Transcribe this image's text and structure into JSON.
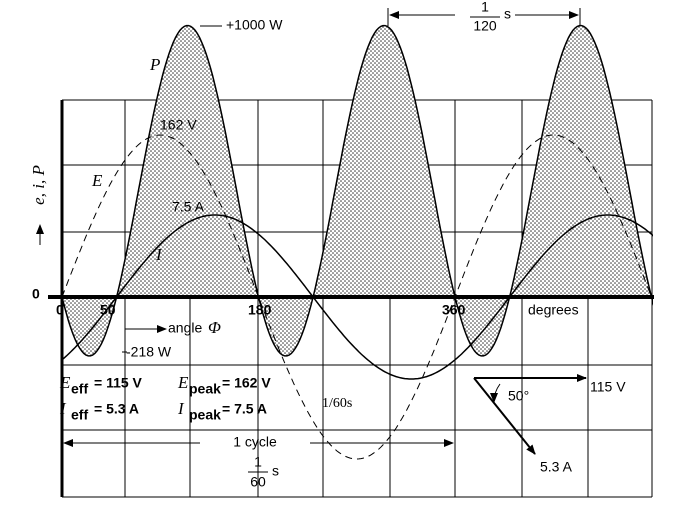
{
  "power": {
    "peak": "+1000 W",
    "label": "P",
    "trough": "-218 W"
  },
  "voltage": {
    "peak": "162 V",
    "label": "E"
  },
  "current": {
    "peak": "7.5 A",
    "label": "I"
  },
  "axis": {
    "y_label": "e, i, P",
    "origin": "0",
    "x_origin": "0",
    "x_50": "50",
    "x_180": "180",
    "x_360": "360",
    "x_unit": "degrees",
    "angle": "angle",
    "angle_symbol": "Φ"
  },
  "formulas": [
    {
      "symbol": "E",
      "sub": "eff",
      "value": "= 115 V"
    },
    {
      "symbol": "E",
      "sub": "peak",
      "value": "= 162 V"
    },
    {
      "symbol": "I",
      "sub": "eff",
      "value": "= 5.3 A"
    },
    {
      "symbol": "I",
      "sub": "peak",
      "value": "= 7.5 A"
    }
  ],
  "period_note": "1/60s",
  "cycle": {
    "label": "1 cycle",
    "num": "1",
    "den": "60",
    "unit": "s"
  },
  "half_cycle": {
    "num": "1",
    "den": "120",
    "unit": "s"
  },
  "phasor": {
    "angle": "50°",
    "voltage": "115 V",
    "current": "5.3 A"
  }
}
